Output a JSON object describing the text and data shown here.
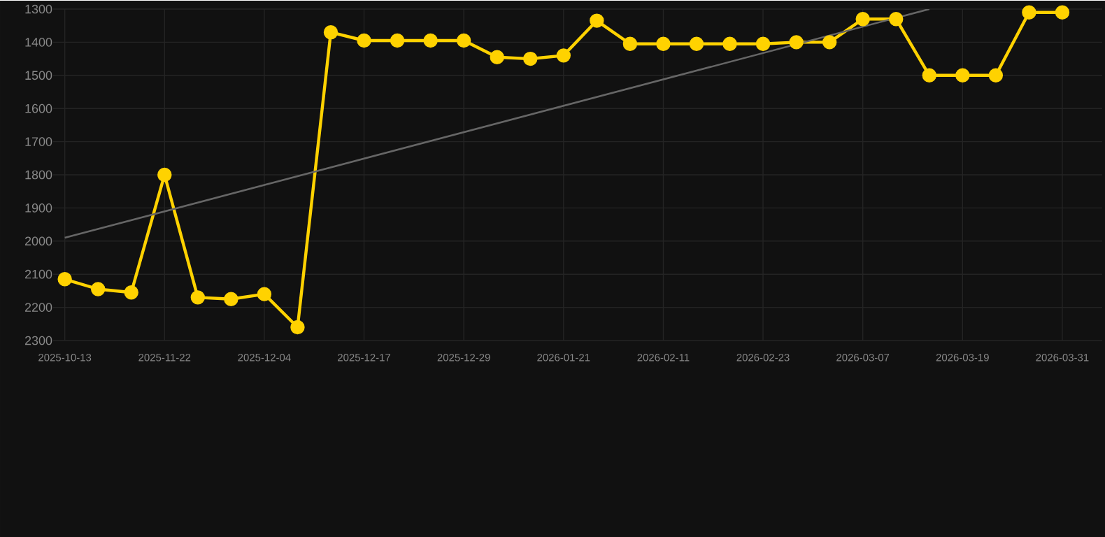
{
  "chart_data": {
    "type": "line",
    "categories": [
      "2025-10-13",
      null,
      null,
      "2025-11-22",
      null,
      null,
      "2025-12-04",
      null,
      null,
      "2025-12-17",
      null,
      null,
      "2025-12-29",
      null,
      null,
      "2026-01-21",
      null,
      null,
      "2026-02-11",
      null,
      null,
      "2026-02-23",
      null,
      null,
      "2026-03-07",
      null,
      null,
      "2026-03-19",
      null,
      null,
      "2026-03-31"
    ],
    "series": [
      {
        "color": "#ffd200",
        "marker": "circle",
        "values": [
          2115,
          2145,
          2155,
          1800,
          2170,
          2175,
          2160,
          2260,
          1370,
          1395,
          1395,
          1395,
          1395,
          1445,
          1450,
          1440,
          1335,
          1405,
          1405,
          1405,
          1405,
          1405,
          1400,
          1400,
          1330,
          1330,
          1500,
          1500,
          1500,
          1310,
          1310
        ]
      },
      {
        "type": "line",
        "color": "#666666",
        "marker": "none",
        "values": [
          1990,
          null,
          null,
          null,
          null,
          null,
          null,
          null,
          null,
          null,
          null,
          null,
          null,
          null,
          null,
          null,
          null,
          null,
          null,
          null,
          null,
          null,
          null,
          null,
          null,
          null,
          1300,
          null,
          null,
          null,
          null
        ]
      }
    ],
    "ylim": [
      2300,
      1300
    ],
    "yticks": [
      1300,
      1400,
      1500,
      1600,
      1700,
      1800,
      1900,
      2000,
      2100,
      2200,
      2300
    ],
    "grid": true
  }
}
